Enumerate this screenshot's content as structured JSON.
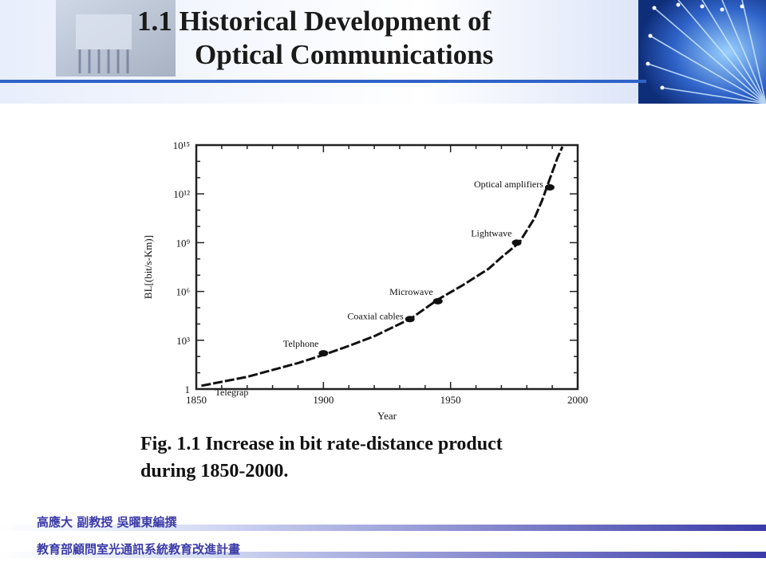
{
  "slide": {
    "title_line1": "1.1  Historical Development of",
    "title_line2": "Optical Communications",
    "caption_line1": "Fig. 1.1  Increase in bit rate-distance product",
    "caption_line2": "during 1850-2000."
  },
  "footer": {
    "line1": "高應大 副教授 吳曜東編撰",
    "line2": "教育部顧問室光通訊系統教育改進計畫"
  },
  "colors": {
    "banner_blue": "#2f63c8",
    "footer_text": "#3b3ba8",
    "curve": "#111111"
  },
  "chart_data": {
    "type": "line",
    "title": "",
    "xlabel": "Year",
    "ylabel": "BL[(bit/s-Km)]",
    "scale_y": "log10",
    "xlim": [
      1850,
      2000
    ],
    "ylim_exponent": [
      0,
      15
    ],
    "x_ticks": [
      "1850",
      "1900",
      "1950",
      "2000"
    ],
    "y_ticks": [
      {
        "label": "1",
        "exp": 0
      },
      {
        "label": "10³",
        "exp": 3
      },
      {
        "label": "10⁶",
        "exp": 6
      },
      {
        "label": "10⁹",
        "exp": 9
      },
      {
        "label": "10¹²",
        "exp": 12
      },
      {
        "label": "10¹⁵",
        "exp": 15
      }
    ],
    "curve": [
      [
        1852,
        0.2
      ],
      [
        1870,
        0.75
      ],
      [
        1890,
        1.6
      ],
      [
        1900,
        2.1
      ],
      [
        1910,
        2.65
      ],
      [
        1920,
        3.25
      ],
      [
        1930,
        4.0
      ],
      [
        1935,
        4.4
      ],
      [
        1945,
        5.5
      ],
      [
        1955,
        6.4
      ],
      [
        1965,
        7.4
      ],
      [
        1970,
        8.1
      ],
      [
        1977,
        9.0
      ],
      [
        1983,
        10.5
      ],
      [
        1986,
        11.6
      ],
      [
        1989,
        12.9
      ],
      [
        1992,
        14.2
      ],
      [
        1994,
        14.9
      ]
    ],
    "annotations": [
      {
        "label": "Telegrap",
        "x": 1853,
        "exp": 0.2,
        "label_pos": "below-right"
      },
      {
        "label": "Telphone",
        "x": 1900,
        "exp": 2.2,
        "label_pos": "above-left"
      },
      {
        "label": "Coaxial cables",
        "x": 1934,
        "exp": 4.3,
        "label_pos": "left"
      },
      {
        "label": "Microwave",
        "x": 1945,
        "exp": 5.4,
        "label_pos": "above-left"
      },
      {
        "label": "Lightwave",
        "x": 1976,
        "exp": 9.0,
        "label_pos": "above-left"
      },
      {
        "label": "Optical amplifiers",
        "x": 1989,
        "exp": 12.4,
        "label_pos": "left"
      }
    ]
  }
}
